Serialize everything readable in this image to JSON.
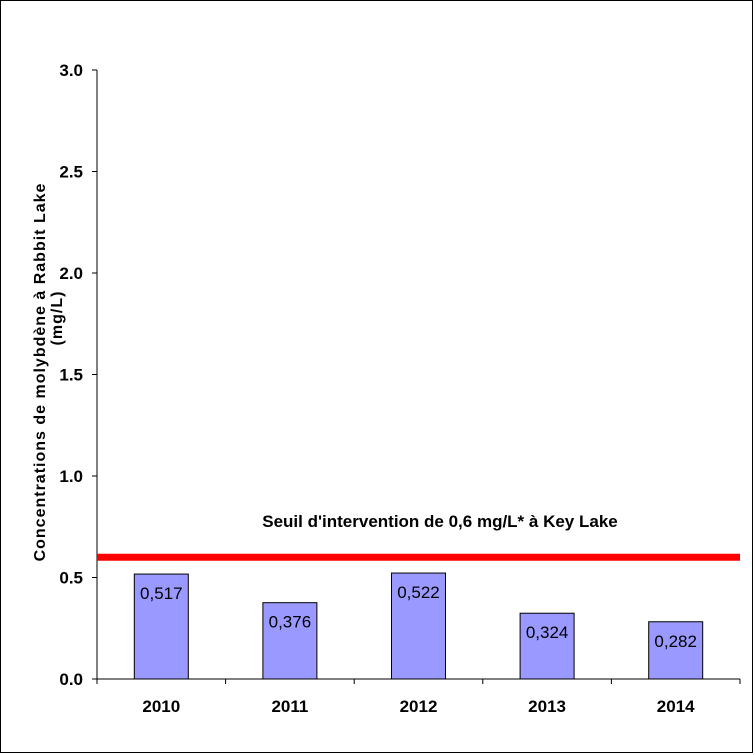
{
  "chart_data": {
    "type": "bar",
    "categories": [
      "2010",
      "2011",
      "2012",
      "2013",
      "2014"
    ],
    "values": [
      0.517,
      0.376,
      0.522,
      0.324,
      0.282
    ],
    "value_labels": [
      "0,517",
      "0,376",
      "0,522",
      "0,324",
      "0,282"
    ],
    "ylabel": "Concentrations de molybdène à Rabbit Lake (mg/L)",
    "ylim": [
      0,
      3.0
    ],
    "yticks": [
      "0.0",
      "0.5",
      "1.0",
      "1.5",
      "2.0",
      "2.5",
      "3.0"
    ],
    "ytick_values": [
      0,
      0.5,
      1.0,
      1.5,
      2.0,
      2.5,
      3.0
    ],
    "bar_color": "#9999ff",
    "threshold": {
      "value": 0.6,
      "label": "Seuil d'intervention de 0,6 mg/L* à Key Lake",
      "color": "#ff0000"
    },
    "grid": false
  }
}
